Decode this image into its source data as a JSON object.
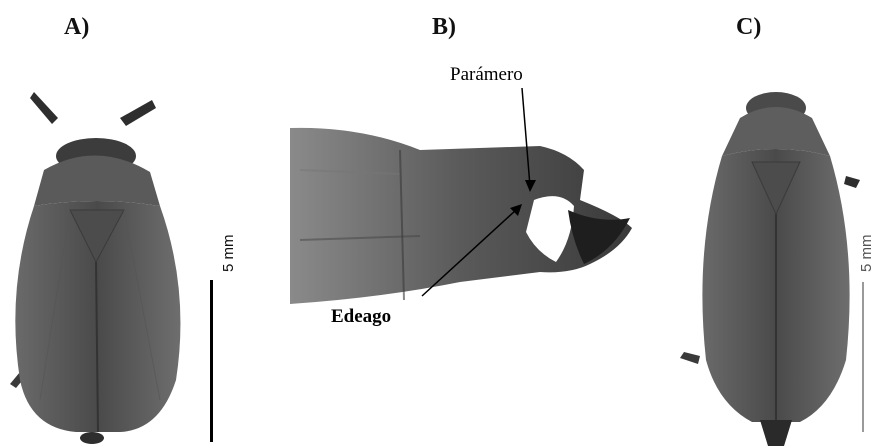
{
  "panels": {
    "a": {
      "label": "A)",
      "scale_label": "5 mm"
    },
    "b": {
      "label": "B)",
      "annotations": {
        "paramero": "Parámero",
        "edeago": "Edeago"
      }
    },
    "c": {
      "label": "C)",
      "scale_label": "5 mm"
    }
  },
  "colors": {
    "insect_dark": "#3a3a3a",
    "insect_mid": "#5e5e5e",
    "background": "#ffffff"
  }
}
